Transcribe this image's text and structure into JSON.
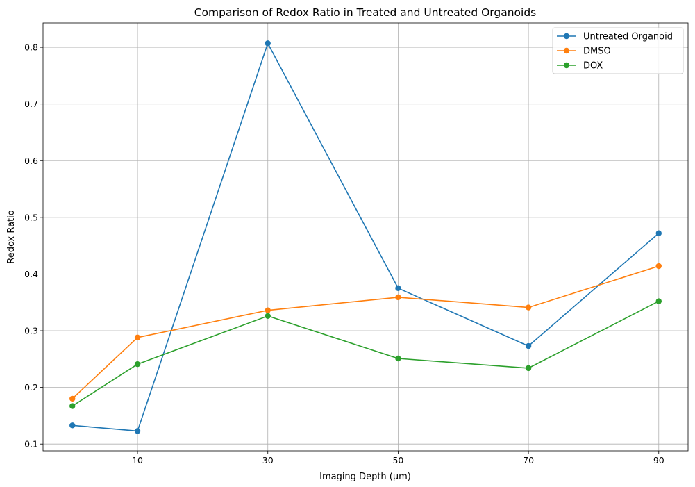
{
  "chart_data": {
    "type": "line",
    "title": "Comparison of Redox Ratio in Treated and Untreated Organoids",
    "xlabel": "Imaging Depth (µm)",
    "ylabel": "Redox Ratio",
    "x": [
      0,
      10,
      30,
      50,
      70,
      90
    ],
    "x_tick_values": [
      10,
      30,
      50,
      70,
      90
    ],
    "x_tick_labels": [
      "10",
      "30",
      "50",
      "70",
      "90"
    ],
    "xlim": [
      -4.5,
      94.5
    ],
    "ylim": [
      0.088,
      0.843
    ],
    "y_ticks": [
      0.1,
      0.2,
      0.3,
      0.4,
      0.5,
      0.6,
      0.7,
      0.8
    ],
    "y_tick_labels": [
      "0.1",
      "0.2",
      "0.3",
      "0.4",
      "0.5",
      "0.6",
      "0.7",
      "0.8"
    ],
    "grid": true,
    "legend_position": "top-right",
    "series": [
      {
        "name": "Untreated Organoid",
        "color": "#1f77b4",
        "values": [
          0.133,
          0.123,
          0.807,
          0.375,
          0.273,
          0.472
        ]
      },
      {
        "name": "DMSO",
        "color": "#ff7f0e",
        "values": [
          0.18,
          0.288,
          0.336,
          0.359,
          0.341,
          0.414
        ]
      },
      {
        "name": "DOX",
        "color": "#2ca02c",
        "values": [
          0.167,
          0.241,
          0.326,
          0.251,
          0.234,
          0.352
        ]
      }
    ]
  }
}
